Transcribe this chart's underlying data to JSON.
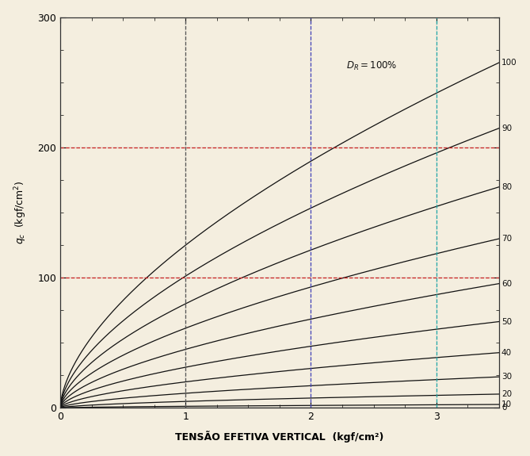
{
  "xlabel": "TENSÃO EFETIVA VERTICAL  (kgf/cm²)",
  "xlim": [
    0,
    3.5
  ],
  "ylim": [
    0,
    300
  ],
  "xticks": [
    0,
    1,
    2,
    3
  ],
  "yticks": [
    0,
    100,
    200,
    300
  ],
  "dr_values": [
    0,
    10,
    20,
    30,
    40,
    50,
    60,
    70,
    80,
    90,
    100
  ],
  "hlines_y": [
    100,
    200
  ],
  "hline_color": "#cc2222",
  "vlines_x": [
    1.0,
    2.0,
    3.0
  ],
  "vline_colors": [
    "#555555",
    "#4444bb",
    "#22aaaa"
  ],
  "curve_color": "#111111",
  "background_color": "#f4eedf",
  "grid_color": "#aaaaaa",
  "label_color": "#111111",
  "K": 125.0,
  "n": 0.6
}
